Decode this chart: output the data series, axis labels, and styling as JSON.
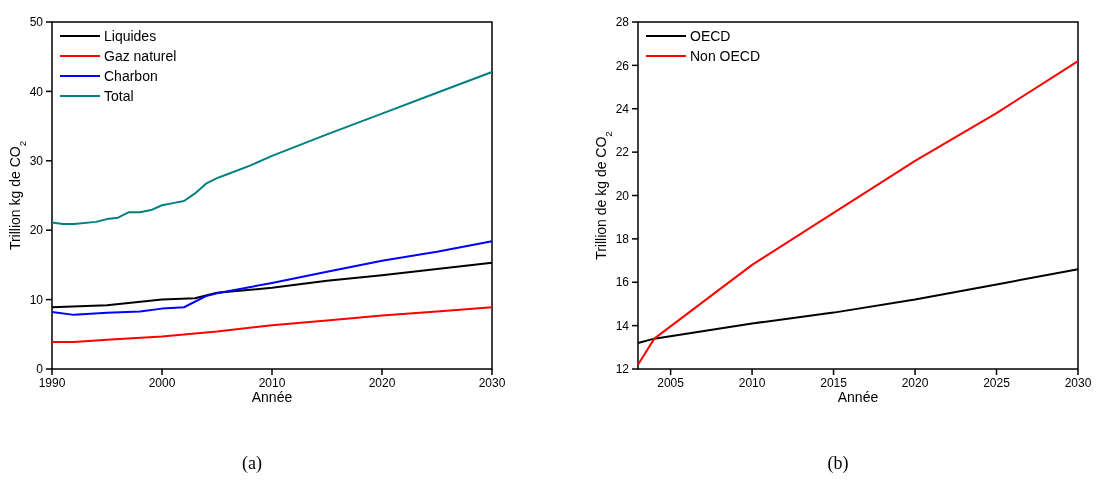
{
  "chart_data": [
    {
      "type": "line",
      "xlabel": "Année",
      "ylabel": "Trillion kg de CO$_{2}$",
      "xlim": [
        1990,
        2030
      ],
      "xticks": [
        1990,
        2000,
        2010,
        2020,
        2030
      ],
      "ylim": [
        0,
        50
      ],
      "yticks": [
        0,
        10,
        20,
        30,
        40,
        50
      ],
      "legend": "top left",
      "grid": false,
      "annotations": [
        "(a)"
      ],
      "series": [
        {
          "name": "Liquides",
          "color": "#000000",
          "x": [
            1990,
            1995,
            2000,
            2003,
            2005,
            2010,
            2015,
            2020,
            2025,
            2030
          ],
          "values": [
            8.9,
            9.2,
            10.0,
            10.2,
            11.0,
            11.7,
            12.7,
            13.5,
            14.4,
            15.3
          ]
        },
        {
          "name": "Gaz naturel",
          "color": "#ff0000",
          "x": [
            1990,
            1992,
            1994,
            1995,
            2000,
            2005,
            2010,
            2015,
            2020,
            2025,
            2030
          ],
          "values": [
            3.9,
            3.9,
            4.1,
            4.2,
            4.7,
            5.4,
            6.3,
            7.0,
            7.7,
            8.3,
            8.9
          ]
        },
        {
          "name": "Charbon",
          "color": "#0000ff",
          "x": [
            1990,
            1992,
            1995,
            1998,
            2000,
            2002,
            2004,
            2005,
            2010,
            2015,
            2020,
            2025,
            2030
          ],
          "values": [
            8.2,
            7.8,
            8.1,
            8.3,
            8.7,
            8.9,
            10.5,
            10.9,
            12.4,
            14.0,
            15.6,
            16.9,
            18.4
          ]
        },
        {
          "name": "Total",
          "color": "#008080",
          "x": [
            1990,
            1991,
            1992,
            1994,
            1995,
            1996,
            1997,
            1998,
            1999,
            2000,
            2001,
            2002,
            2003,
            2004,
            2005,
            2006,
            2008,
            2010,
            2015,
            2020,
            2025,
            2030
          ],
          "values": [
            21.1,
            20.9,
            20.9,
            21.2,
            21.6,
            21.8,
            22.6,
            22.6,
            22.9,
            23.6,
            23.9,
            24.2,
            25.3,
            26.7,
            27.5,
            28.1,
            29.3,
            30.7,
            33.8,
            36.8,
            39.8,
            42.8
          ]
        }
      ]
    },
    {
      "type": "line",
      "xlabel": "Année",
      "ylabel": "Trillion de kg de CO$_{2}$",
      "xlim": [
        2003,
        2030
      ],
      "xticks": [
        2005,
        2010,
        2015,
        2020,
        2025,
        2030
      ],
      "ylim": [
        12,
        28
      ],
      "yticks": [
        12,
        14,
        16,
        18,
        20,
        22,
        24,
        26,
        28
      ],
      "legend": "top left",
      "grid": false,
      "annotations": [
        "(b)"
      ],
      "series": [
        {
          "name": "OECD",
          "color": "#000000",
          "x": [
            2003,
            2004,
            2010,
            2015,
            2020,
            2025,
            2030
          ],
          "values": [
            13.2,
            13.4,
            14.1,
            14.6,
            15.2,
            15.9,
            16.6
          ]
        },
        {
          "name": "Non OECD",
          "color": "#ff0000",
          "x": [
            2003,
            2004,
            2010,
            2015,
            2020,
            2025,
            2030
          ],
          "values": [
            12.2,
            13.4,
            16.8,
            19.2,
            21.6,
            23.8,
            26.2
          ]
        }
      ]
    }
  ]
}
